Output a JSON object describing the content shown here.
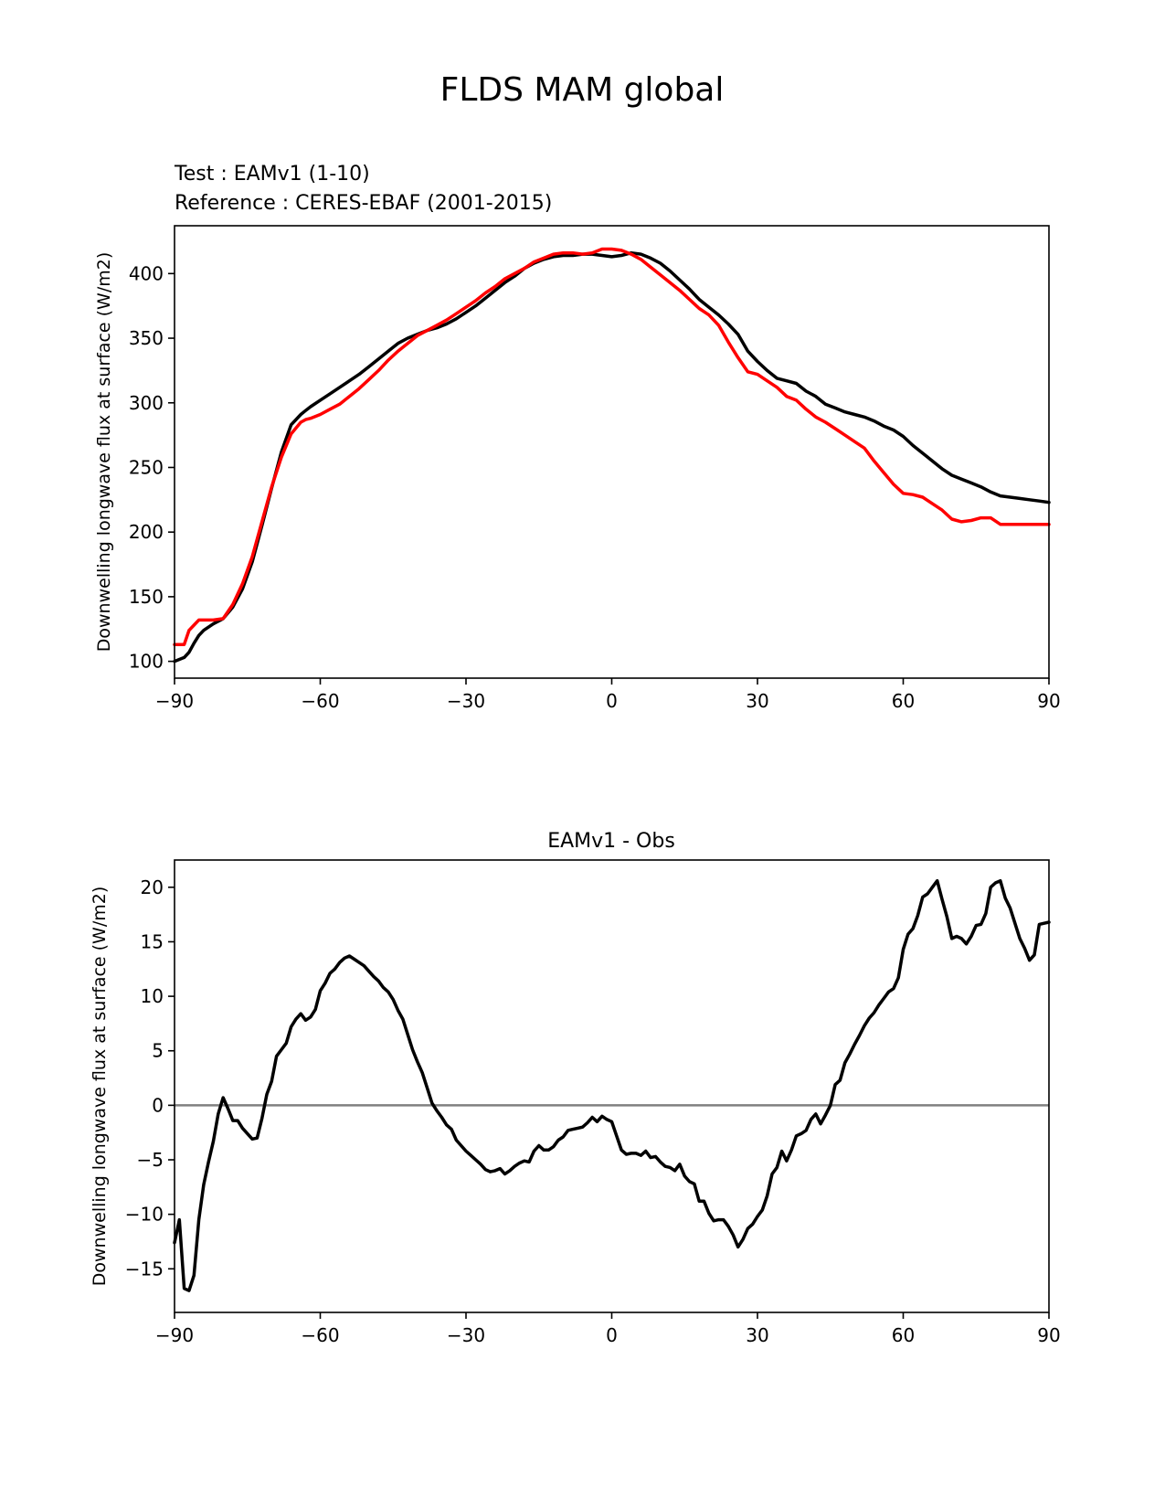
{
  "figure": {
    "title": "FLDS MAM global"
  },
  "colors": {
    "test": "#000000",
    "reference": "#ff0000",
    "zero_line": "#808080"
  },
  "chart_data": [
    {
      "type": "line",
      "test_label": "Test : EAMv1 (1-10)",
      "reference_label": "Reference : CERES-EBAF (2001-2015)",
      "xlabel": "",
      "ylabel": "Downwelling longwave flux at surface (W/m2)",
      "xlim": [
        -90,
        90
      ],
      "ylim": [
        87,
        437
      ],
      "xticks": [
        -90,
        -60,
        -30,
        0,
        30,
        60,
        90
      ],
      "xtick_labels": [
        "−90",
        "−60",
        "−30",
        "0",
        "30",
        "60",
        "90"
      ],
      "yticks": [
        100,
        150,
        200,
        250,
        300,
        350,
        400
      ],
      "ytick_labels": [
        "100",
        "150",
        "200",
        "250",
        "300",
        "350",
        "400"
      ],
      "series": [
        {
          "name": "Test : EAMv1 (1-10)",
          "color": "#000000",
          "x": [
            -90,
            -88,
            -87,
            -86,
            -85,
            -84,
            -82,
            -80,
            -78,
            -76,
            -74,
            -72,
            -70,
            -68,
            -66,
            -64,
            -63,
            -62,
            -60,
            -58,
            -56,
            -54,
            -52,
            -50,
            -48,
            -46,
            -44,
            -42,
            -40,
            -38,
            -36,
            -34,
            -32,
            -30,
            -28,
            -26,
            -24,
            -22,
            -20,
            -18,
            -16,
            -14,
            -12,
            -10,
            -8,
            -6,
            -4,
            -2,
            0,
            2,
            4,
            6,
            8,
            10,
            12,
            14,
            16,
            18,
            20,
            22,
            24,
            26,
            28,
            30,
            32,
            34,
            36,
            38,
            40,
            42,
            44,
            46,
            48,
            50,
            52,
            54,
            56,
            58,
            60,
            62,
            64,
            66,
            68,
            70,
            72,
            74,
            76,
            78,
            80,
            82,
            84,
            86,
            88,
            90
          ],
          "y": [
            100,
            103,
            107,
            114,
            120,
            124,
            129,
            133,
            142,
            156,
            177,
            205,
            234,
            262,
            283,
            291,
            294,
            297,
            302,
            307,
            312,
            317,
            322,
            328,
            334,
            340,
            346,
            350,
            353,
            356,
            358,
            361,
            365,
            370,
            375,
            381,
            387,
            393,
            398,
            404,
            408,
            411,
            413,
            414,
            414,
            415,
            415,
            414,
            413,
            414,
            416,
            415,
            412,
            408,
            402,
            395,
            388,
            380,
            374,
            368,
            361,
            353,
            340,
            332,
            325,
            319,
            317,
            315,
            309,
            305,
            299,
            296,
            293,
            291,
            289,
            286,
            282,
            279,
            274,
            267,
            261,
            255,
            249,
            244,
            241,
            238,
            235,
            231,
            228,
            227,
            226,
            225,
            224,
            223
          ]
        },
        {
          "name": "Reference : CERES-EBAF (2001-2015)",
          "color": "#ff0000",
          "x": [
            -90,
            -88,
            -87,
            -86,
            -85,
            -84,
            -82,
            -80,
            -78,
            -76,
            -74,
            -72,
            -70,
            -68,
            -66,
            -64,
            -63,
            -62,
            -60,
            -58,
            -56,
            -54,
            -52,
            -50,
            -48,
            -46,
            -44,
            -42,
            -40,
            -38,
            -36,
            -34,
            -32,
            -30,
            -28,
            -26,
            -24,
            -22,
            -20,
            -18,
            -16,
            -14,
            -12,
            -10,
            -8,
            -6,
            -4,
            -2,
            0,
            2,
            4,
            6,
            8,
            10,
            12,
            14,
            16,
            18,
            20,
            22,
            24,
            26,
            28,
            30,
            32,
            34,
            36,
            38,
            40,
            42,
            44,
            46,
            48,
            50,
            52,
            54,
            56,
            58,
            60,
            62,
            64,
            66,
            68,
            70,
            72,
            74,
            76,
            78,
            80,
            82,
            84,
            86,
            88,
            90
          ],
          "y": [
            113,
            113,
            124,
            128,
            132,
            132,
            132,
            133,
            144,
            160,
            181,
            208,
            235,
            258,
            276,
            285,
            287,
            288,
            291,
            295,
            299,
            305,
            311,
            318,
            325,
            333,
            340,
            346,
            352,
            356,
            360,
            364,
            369,
            374,
            379,
            385,
            390,
            396,
            400,
            404,
            409,
            412,
            415,
            416,
            416,
            415,
            416,
            419,
            419,
            418,
            415,
            411,
            405,
            399,
            393,
            387,
            380,
            373,
            368,
            360,
            347,
            335,
            324,
            322,
            317,
            312,
            305,
            302,
            295,
            289,
            285,
            280,
            275,
            270,
            265,
            255,
            246,
            237,
            230,
            229,
            227,
            222,
            217,
            210,
            208,
            209,
            211,
            211,
            206,
            206,
            206,
            206,
            206,
            206
          ]
        }
      ]
    },
    {
      "type": "line",
      "title": "EAMv1 - Obs",
      "xlabel": "",
      "ylabel": "Downwelling longwave flux at surface (W/m2)",
      "xlim": [
        -90,
        90
      ],
      "ylim": [
        -19,
        22.5
      ],
      "xticks": [
        -90,
        -60,
        -30,
        0,
        30,
        60,
        90
      ],
      "xtick_labels": [
        "−90",
        "−60",
        "−30",
        "0",
        "30",
        "60",
        "90"
      ],
      "yticks": [
        -15,
        -10,
        -5,
        0,
        5,
        10,
        15,
        20
      ],
      "ytick_labels": [
        "−15",
        "−10",
        "−5",
        "0",
        "5",
        "10",
        "15",
        "20"
      ],
      "zero_line": 0,
      "series": [
        {
          "color": "#000000",
          "x": [
            -90,
            -89,
            -88,
            -87,
            -86,
            -85,
            -84,
            -83,
            -82,
            -81,
            -80,
            -79,
            -78,
            -77,
            -76,
            -75,
            -74,
            -73,
            -72,
            -71,
            -70,
            -69,
            -68,
            -67,
            -66,
            -65,
            -64,
            -63,
            -62,
            -61,
            -60,
            -59,
            -58,
            -57,
            -56,
            -55,
            -54,
            -53,
            -52,
            -51,
            -50,
            -49,
            -48,
            -47,
            -46,
            -45,
            -44,
            -43,
            -42,
            -41,
            -40,
            -39,
            -38,
            -37,
            -36,
            -35,
            -34,
            -33,
            -32,
            -31,
            -30,
            -29,
            -28,
            -27,
            -26,
            -25,
            -24,
            -23,
            -22,
            -21,
            -20,
            -19,
            -18,
            -17,
            -16,
            -15,
            -14,
            -13,
            -12,
            -11,
            -10,
            -9,
            -8,
            -7,
            -6,
            -5,
            -4,
            -3,
            -2,
            -1,
            0,
            1,
            2,
            3,
            4,
            5,
            6,
            7,
            8,
            9,
            10,
            11,
            12,
            13,
            14,
            15,
            16,
            17,
            18,
            19,
            20,
            21,
            22,
            23,
            24,
            25,
            26,
            27,
            28,
            29,
            30,
            31,
            32,
            33,
            34,
            35,
            36,
            37,
            38,
            39,
            40,
            41,
            42,
            43,
            44,
            45,
            46,
            47,
            48,
            49,
            50,
            51,
            52,
            53,
            54,
            55,
            56,
            57,
            58,
            59,
            60,
            61,
            62,
            63,
            64,
            65,
            66,
            67,
            68,
            69,
            70,
            71,
            72,
            73,
            74,
            75,
            76,
            77,
            78,
            79,
            80,
            81,
            82,
            83,
            84,
            85,
            86,
            87,
            88,
            89,
            90
          ],
          "y": [
            -12.6,
            -10.5,
            -16.8,
            -17.0,
            -15.6,
            -10.5,
            -7.3,
            -5.2,
            -3.3,
            -0.8,
            0.7,
            -0.3,
            -1.4,
            -1.4,
            -2.1,
            -2.6,
            -3.1,
            -3.0,
            -1.2,
            1.0,
            2.2,
            4.5,
            5.1,
            5.7,
            7.2,
            7.9,
            8.4,
            7.8,
            8.1,
            8.8,
            10.5,
            11.2,
            12.1,
            12.5,
            13.1,
            13.5,
            13.7,
            13.4,
            13.1,
            12.8,
            12.3,
            11.8,
            11.4,
            10.8,
            10.4,
            9.7,
            8.7,
            7.9,
            6.5,
            5.1,
            4.0,
            3.0,
            1.6,
            0.2,
            -0.5,
            -1.1,
            -1.8,
            -2.2,
            -3.2,
            -3.7,
            -4.2,
            -4.6,
            -5.0,
            -5.4,
            -5.9,
            -6.1,
            -6.0,
            -5.8,
            -6.3,
            -6.0,
            -5.6,
            -5.3,
            -5.1,
            -5.2,
            -4.2,
            -3.7,
            -4.1,
            -4.1,
            -3.8,
            -3.2,
            -2.9,
            -2.3,
            -2.2,
            -2.1,
            -2.0,
            -1.6,
            -1.1,
            -1.5,
            -1.0,
            -1.3,
            -1.5,
            -2.8,
            -4.1,
            -4.5,
            -4.4,
            -4.4,
            -4.6,
            -4.2,
            -4.8,
            -4.7,
            -5.2,
            -5.6,
            -5.7,
            -6.0,
            -5.4,
            -6.5,
            -7.0,
            -7.2,
            -8.8,
            -8.8,
            -9.9,
            -10.6,
            -10.5,
            -10.5,
            -11.1,
            -11.9,
            -13.0,
            -12.3,
            -11.3,
            -10.9,
            -10.2,
            -9.6,
            -8.3,
            -6.3,
            -5.7,
            -4.2,
            -5.1,
            -4.1,
            -2.8,
            -2.6,
            -2.3,
            -1.3,
            -0.8,
            -1.7,
            -0.9,
            0.0,
            1.9,
            2.3,
            3.9,
            4.7,
            5.6,
            6.4,
            7.3,
            8.0,
            8.5,
            9.2,
            9.8,
            10.4,
            10.7,
            11.7,
            14.3,
            15.7,
            16.2,
            17.4,
            19.1,
            19.4,
            20.0,
            20.6,
            18.9,
            17.3,
            15.3,
            15.5,
            15.3,
            14.8,
            15.5,
            16.5,
            16.6,
            17.6,
            20.0,
            20.4,
            20.6,
            19.0,
            18.1,
            16.7,
            15.3,
            14.4,
            13.3,
            13.8,
            16.6,
            16.7,
            16.8
          ]
        }
      ]
    }
  ]
}
